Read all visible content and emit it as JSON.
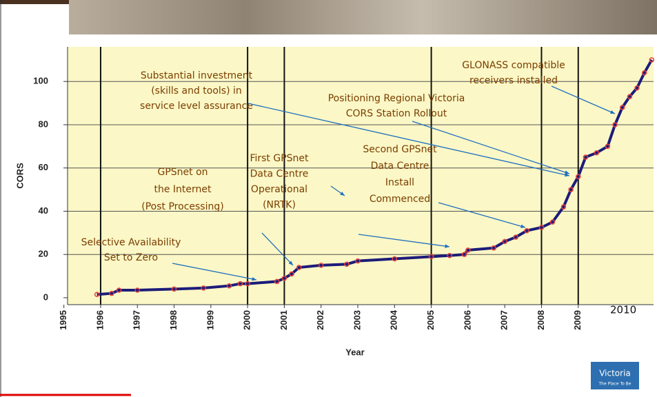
{
  "chart_data": {
    "type": "line",
    "y_label": "CORS",
    "x_label": "Year",
    "x": [
      1995.9,
      1996.3,
      1996.5,
      1997,
      1998,
      1998.8,
      1999.5,
      1999.8,
      2000,
      2000.8,
      2001,
      2001.2,
      2001.4,
      2002,
      2002.7,
      2003,
      2004,
      2005,
      2005.5,
      2005.9,
      2006,
      2006.7,
      2007,
      2007.3,
      2007.6,
      2008,
      2008.3,
      2008.6,
      2008.8,
      2009,
      2009.2,
      2009.5,
      2009.8,
      2010,
      2010.2,
      2010.4,
      2010.6,
      2010.8,
      2011
    ],
    "values": [
      1.5,
      2,
      3.5,
      3.5,
      4,
      4.5,
      5.5,
      6.5,
      6.5,
      7.5,
      9,
      11,
      14,
      15,
      15.5,
      17,
      18,
      19,
      19.5,
      20,
      22,
      23,
      26,
      28,
      31,
      32.5,
      35,
      42,
      50,
      56,
      65,
      67,
      70,
      80,
      88,
      93,
      97,
      104,
      110
    ],
    "color": "#1c1c7a",
    "marker_color": "#e8403a",
    "xlim": [
      1995.1,
      2011.05
    ],
    "ylim": [
      -3.2,
      116
    ],
    "xticks": [
      1995,
      1996,
      1997,
      1998,
      1999,
      2000,
      2001,
      2002,
      2003,
      2004,
      2005,
      2006,
      2007,
      2008,
      2009
    ],
    "yticks": [
      0,
      20,
      40,
      60,
      80,
      100
    ],
    "milestone_years": [
      1996,
      2000,
      2001,
      2005,
      2008,
      2009
    ],
    "grid": true,
    "extra_year_label": "2010",
    "annotations": [
      {
        "lines": [
          "Selective Availability",
          "Set to Zero"
        ]
      },
      {
        "lines": [
          "GPSnet on",
          "the Internet",
          "(Post Processing)"
        ]
      },
      {
        "lines": [
          "First GPSnet",
          "Data Centre",
          "Operational",
          "(NRTK)"
        ]
      },
      {
        "lines": [
          "Second GPSnet",
          "Data Centre",
          "Install",
          "Commenced"
        ]
      },
      {
        "lines": [
          "Substantial investment",
          "(skills and tools) in",
          "service level assurance"
        ]
      },
      {
        "lines": [
          "Positioning Regional Victoria",
          "CORS Station Rollout"
        ]
      },
      {
        "lines": [
          "GLONASS compatible",
          "receivers installed"
        ]
      }
    ]
  },
  "logo": {
    "name": "Victoria",
    "tagline": "The Place To Be"
  }
}
